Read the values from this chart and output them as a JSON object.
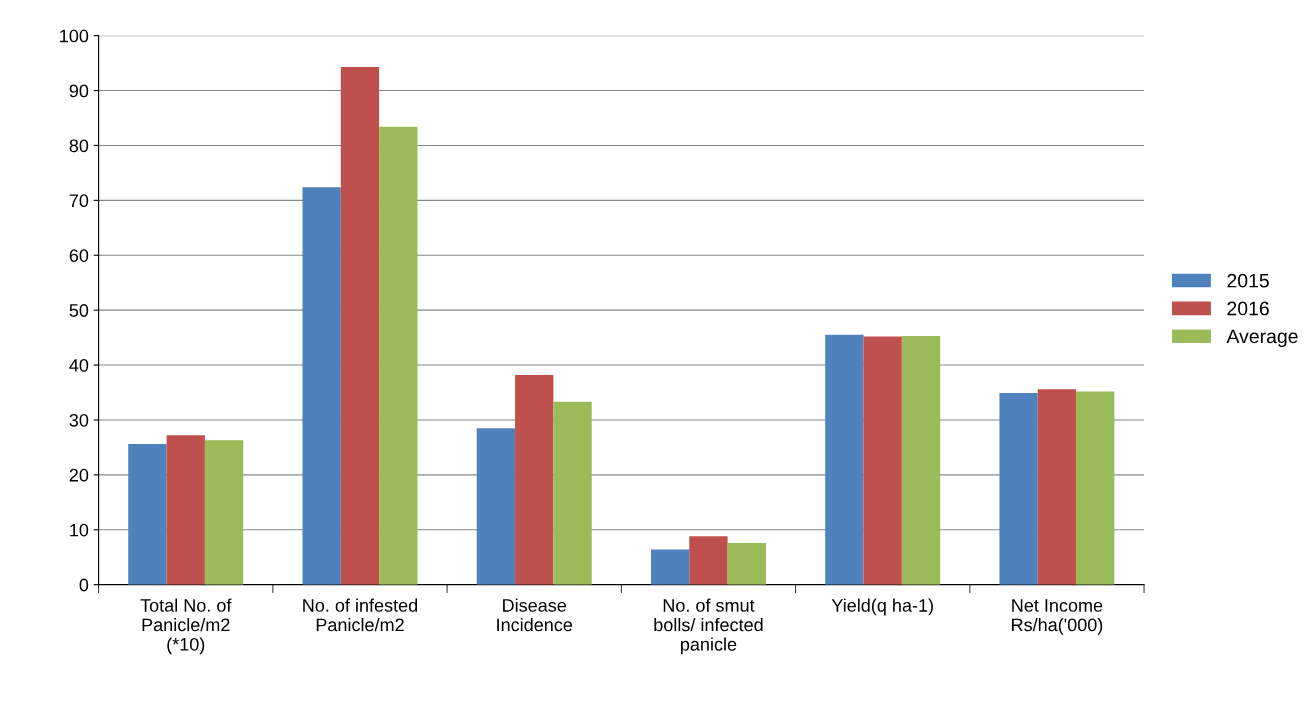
{
  "chart_data": {
    "type": "bar",
    "categories": [
      "Total No. of\nPanicle/m2\n(*10)",
      "No. of infested\nPanicle/m2",
      "Disease\nIncidence",
      "No. of smut\nbolls/ infected\npanicle",
      "Yield(q ha-1)",
      "Net Income\nRs/ha('000)"
    ],
    "series": [
      {
        "name": "2015",
        "color": "#4f81bd",
        "values": [
          25.6,
          72.4,
          28.5,
          6.4,
          45.5,
          34.9
        ]
      },
      {
        "name": "2016",
        "color": "#c0504d",
        "values": [
          27.2,
          94.3,
          38.2,
          8.8,
          45.2,
          35.6
        ]
      },
      {
        "name": "Average",
        "color": "#9bbb59",
        "values": [
          26.3,
          83.4,
          33.3,
          7.6,
          45.3,
          35.2
        ]
      }
    ],
    "ylim": [
      0,
      100
    ],
    "yticks": [
      0,
      10,
      20,
      30,
      40,
      50,
      60,
      70,
      80,
      90,
      100
    ],
    "grid": "y",
    "legend": "right"
  }
}
